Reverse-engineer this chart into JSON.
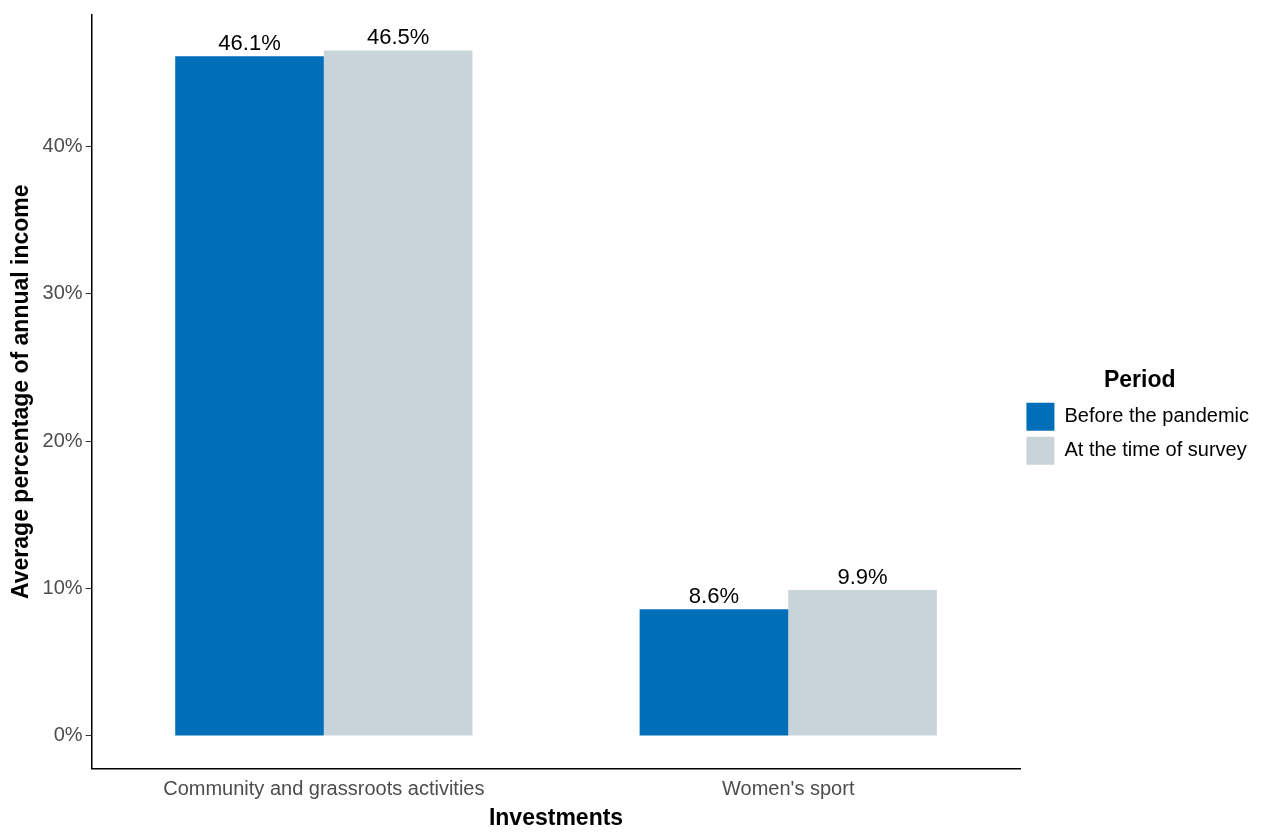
{
  "chart_data": {
    "type": "bar",
    "xlabel": "Investments",
    "ylabel": "Average percentage of annual income",
    "legend_title": "Period",
    "categories": [
      "Community and grassroots activities",
      "Women's sport"
    ],
    "series": [
      {
        "name": "Before the pandemic",
        "color": "#006eb9",
        "values": [
          46.1,
          8.6
        ],
        "value_labels": [
          "46.1%",
          "8.6%"
        ]
      },
      {
        "name": "At the time of survey",
        "color": "#c9d4d9",
        "values": [
          46.5,
          9.9
        ],
        "value_labels": [
          "46.5%",
          "9.9%"
        ]
      }
    ],
    "ylim": [
      -2.2,
      48.9
    ],
    "yticks": [
      {
        "value": 0,
        "label": "0%"
      },
      {
        "value": 10,
        "label": "10%"
      },
      {
        "value": 20,
        "label": "20%"
      },
      {
        "value": 30,
        "label": "30%"
      },
      {
        "value": 40,
        "label": "40%"
      }
    ],
    "grid": false,
    "legend": "right"
  }
}
